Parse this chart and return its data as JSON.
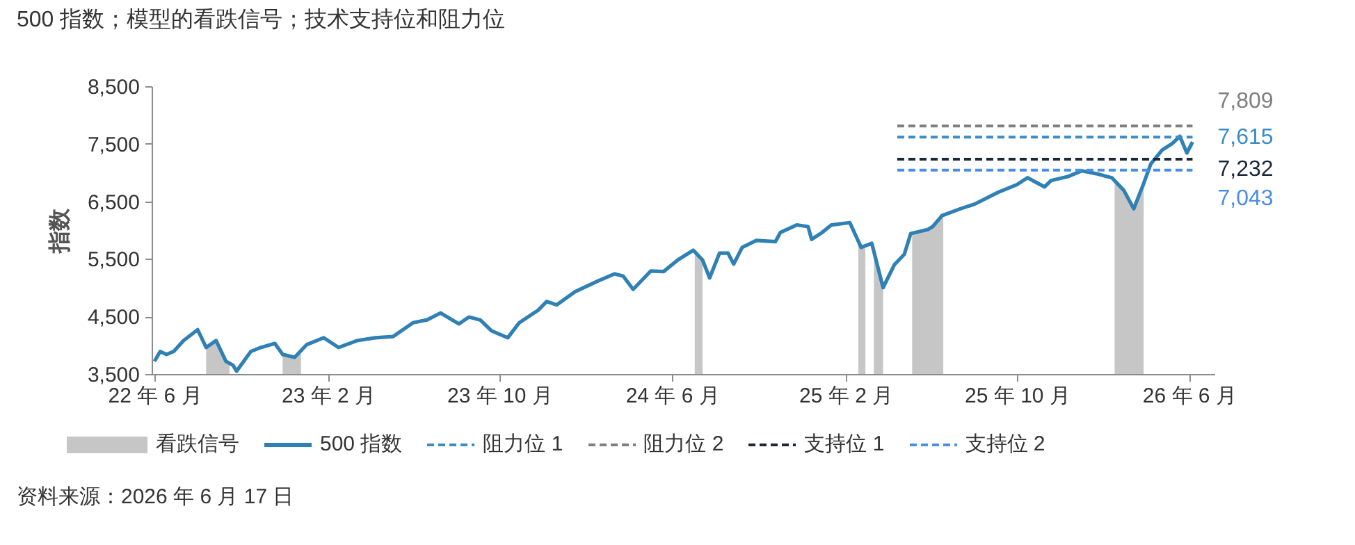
{
  "chart_data": {
    "type": "line",
    "title": "500 指数；模型的看跌信号；技术支持位和阻力位",
    "ylabel": "指数",
    "annotations": [
      "资料来源：2026 年 6 月 17 日"
    ],
    "xlim": [
      "2022-05-28",
      "2026-07-07"
    ],
    "xticks": [
      {
        "value": "2022-06-01",
        "label": "22 年 6 月"
      },
      {
        "value": "2023-02-01",
        "label": "23 年 2 月"
      },
      {
        "value": "2023-10-01",
        "label": "23 年 10 月"
      },
      {
        "value": "2024-06-01",
        "label": "24 年 6 月"
      },
      {
        "value": "2025-02-01",
        "label": "25 年 2 月"
      },
      {
        "value": "2025-10-01",
        "label": "25 年 10 月"
      },
      {
        "value": "2026-06-01",
        "label": "26 年 6 月"
      }
    ],
    "ylim": [
      3500,
      8500
    ],
    "yticks": [
      {
        "value": 3500,
        "label": "3,500"
      },
      {
        "value": 4500,
        "label": "4,500"
      },
      {
        "value": 5500,
        "label": "5,500"
      },
      {
        "value": 6500,
        "label": "6,500"
      },
      {
        "value": 7500,
        "label": "7,500"
      },
      {
        "value": 8500,
        "label": "8,500"
      }
    ],
    "grid": false,
    "legend": "bottom",
    "series": [
      {
        "name": "看跌信号",
        "type": "area",
        "color": "#c6c6c6",
        "x": [
          "2022-08-13",
          "2022-08-27",
          "2022-09-10",
          "2022-09-15",
          "2022-10-30",
          "2022-11-29",
          "2022-12-16",
          "2022-12-25",
          "2024-05-01",
          "2024-07-03",
          "2024-07-14",
          "2025-01-01",
          "2025-02-19",
          "2025-03-01",
          "2025-03-07",
          "2025-03-13",
          "2025-03-26",
          "2025-04-20",
          "2025-05-06",
          "2025-05-28",
          "2025-06-04",
          "2025-06-19",
          "2025-12-01",
          "2026-02-16",
          "2026-03-01",
          "2026-03-15",
          "2026-03-29"
        ],
        "values": [
          3960,
          4080,
          3720,
          3680,
          null,
          3840,
          3790,
          3850,
          null,
          5640,
          5480,
          null,
          5780,
          5700,
          null,
          5760,
          5000,
          null,
          5960,
          6010,
          6060,
          6250,
          null,
          6880,
          6690,
          6370,
          6810
        ]
      },
      {
        "name": "500 指数",
        "color": "#2f80b4",
        "line_style": "solid",
        "x": [
          "2022-06-01",
          "2022-06-09",
          "2022-06-18",
          "2022-06-28",
          "2022-07-12",
          "2022-08-01",
          "2022-08-13",
          "2022-08-27",
          "2022-09-10",
          "2022-09-20",
          "2022-09-25",
          "2022-10-15",
          "2022-10-29",
          "2022-11-18",
          "2022-11-29",
          "2022-12-16",
          "2023-01-02",
          "2023-01-26",
          "2023-02-16",
          "2023-03-14",
          "2023-04-09",
          "2023-05-04",
          "2023-06-01",
          "2023-06-21",
          "2023-07-10",
          "2023-08-05",
          "2023-08-19",
          "2023-09-04",
          "2023-09-20",
          "2023-10-13",
          "2023-10-29",
          "2023-11-25",
          "2023-12-07",
          "2023-12-21",
          "2024-01-16",
          "2024-02-18",
          "2024-03-12",
          "2024-03-24",
          "2024-04-07",
          "2024-05-02",
          "2024-05-20",
          "2024-06-09",
          "2024-07-01",
          "2024-07-14",
          "2024-07-24",
          "2024-08-07",
          "2024-08-19",
          "2024-08-27",
          "2024-09-08",
          "2024-09-28",
          "2024-10-25",
          "2024-11-01",
          "2024-11-24",
          "2024-12-10",
          "2024-12-15",
          "2024-12-29",
          "2025-01-12",
          "2025-02-07",
          "2025-02-23",
          "2025-03-10",
          "2025-03-26",
          "2025-04-11",
          "2025-04-25",
          "2025-05-04",
          "2025-05-28",
          "2025-06-04",
          "2025-06-17",
          "2025-07-13",
          "2025-08-02",
          "2025-09-05",
          "2025-10-01",
          "2025-10-16",
          "2025-11-09",
          "2025-11-18",
          "2025-12-12",
          "2026-01-01",
          "2026-01-21",
          "2026-02-12",
          "2026-03-01",
          "2026-03-15",
          "2026-03-29",
          "2026-04-08",
          "2026-04-24",
          "2026-05-09",
          "2026-05-19",
          "2026-05-29",
          "2026-06-06"
        ],
        "values": [
          3720,
          3890,
          3840,
          3890,
          4080,
          4270,
          3960,
          4080,
          3720,
          3650,
          3550,
          3890,
          3960,
          4030,
          3840,
          3790,
          4010,
          4130,
          3960,
          4080,
          4130,
          4150,
          4390,
          4440,
          4560,
          4370,
          4490,
          4440,
          4250,
          4130,
          4390,
          4610,
          4760,
          4700,
          4930,
          5120,
          5240,
          5200,
          4970,
          5290,
          5280,
          5480,
          5650,
          5480,
          5170,
          5600,
          5600,
          5410,
          5700,
          5820,
          5800,
          5960,
          6090,
          6060,
          5840,
          5950,
          6090,
          6130,
          5700,
          5770,
          5000,
          5400,
          5580,
          5940,
          6010,
          6060,
          6250,
          6370,
          6450,
          6660,
          6790,
          6910,
          6750,
          6860,
          6930,
          7030,
          6980,
          6910,
          6690,
          6370,
          6810,
          7150,
          7390,
          7510,
          7630,
          7340,
          7530
        ]
      },
      {
        "name": "阻力位 1",
        "color": "#3a8cc6",
        "line_style": "dashed",
        "x": [
          "2025-04-15",
          "2026-06-06"
        ],
        "values": [
          7615,
          7615
        ],
        "value_labels": [
          null,
          "7,615"
        ]
      },
      {
        "name": "阻力位 2",
        "color": "#7f7f7f",
        "line_style": "dashed",
        "x": [
          "2025-04-15",
          "2026-06-06"
        ],
        "values": [
          7809,
          7809
        ],
        "value_labels": [
          null,
          "7,809"
        ]
      },
      {
        "name": "支持位 1",
        "color": "#1b2838",
        "line_style": "dashed",
        "x": [
          "2025-04-15",
          "2026-06-06"
        ],
        "values": [
          7232,
          7232
        ],
        "value_labels": [
          null,
          "7,232"
        ]
      },
      {
        "name": "支持位 2",
        "color": "#4a8ee6",
        "line_style": "dashed",
        "x": [
          "2025-04-15",
          "2026-06-06"
        ],
        "values": [
          7043,
          7043
        ],
        "value_labels": [
          null,
          "7,043"
        ]
      }
    ]
  }
}
